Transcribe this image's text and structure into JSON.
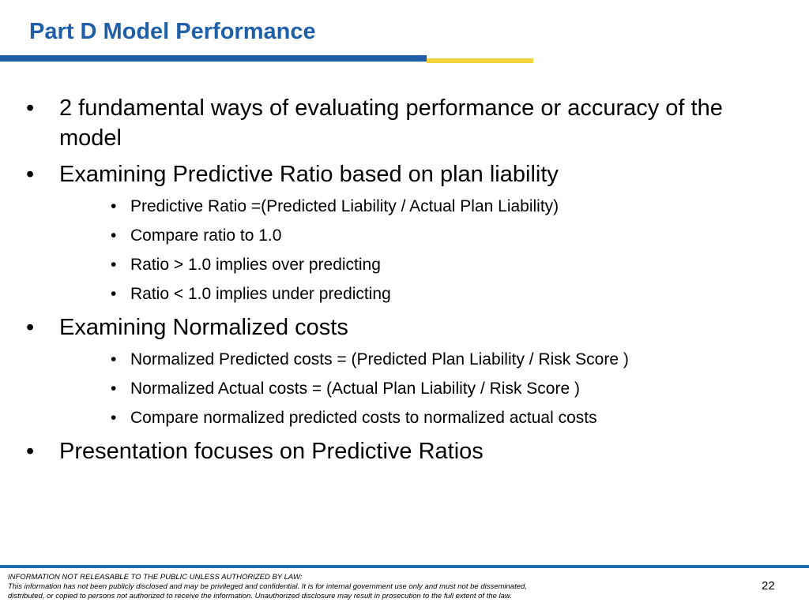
{
  "slide": {
    "title": "Part D Model Performance",
    "page_number": "22",
    "colors": {
      "title": "#1f5fa8",
      "rule_primary": "#1f5fa8",
      "rule_accent": "#f5d33a",
      "footer_rule": "#1f6fb0"
    }
  },
  "bullets": [
    {
      "text": "2 fundamental ways of evaluating performance  or accuracy of the model",
      "sub": []
    },
    {
      "text": "Examining Predictive Ratio based on plan liability",
      "sub": [
        "Predictive Ratio =(Predicted Liability / Actual Plan Liability)",
        "Compare ratio to 1.0",
        "Ratio > 1.0 implies over predicting",
        "Ratio < 1.0 implies under predicting"
      ]
    },
    {
      "text": "Examining Normalized costs",
      "sub": [
        "Normalized Predicted costs = (Predicted Plan Liability / Risk Score )",
        "Normalized Actual costs = (Actual Plan Liability / Risk Score )",
        "Compare normalized predicted costs to normalized actual costs"
      ]
    },
    {
      "text": "Presentation focuses on Predictive Ratios",
      "sub": []
    }
  ],
  "footer": {
    "line1": "INFORMATION NOT RELEASABLE TO THE PUBLIC UNLESS AUTHORIZED BY LAW:",
    "line2": "This information has not been publicly disclosed and may be privileged and confidential.  It is for internal government use only and must not be disseminated,",
    "line3": "distributed, or copied to persons not authorized to receive the information.  Unauthorized disclosure may result in prosecution to the full extent of the law."
  },
  "bullet_glyph": "•"
}
